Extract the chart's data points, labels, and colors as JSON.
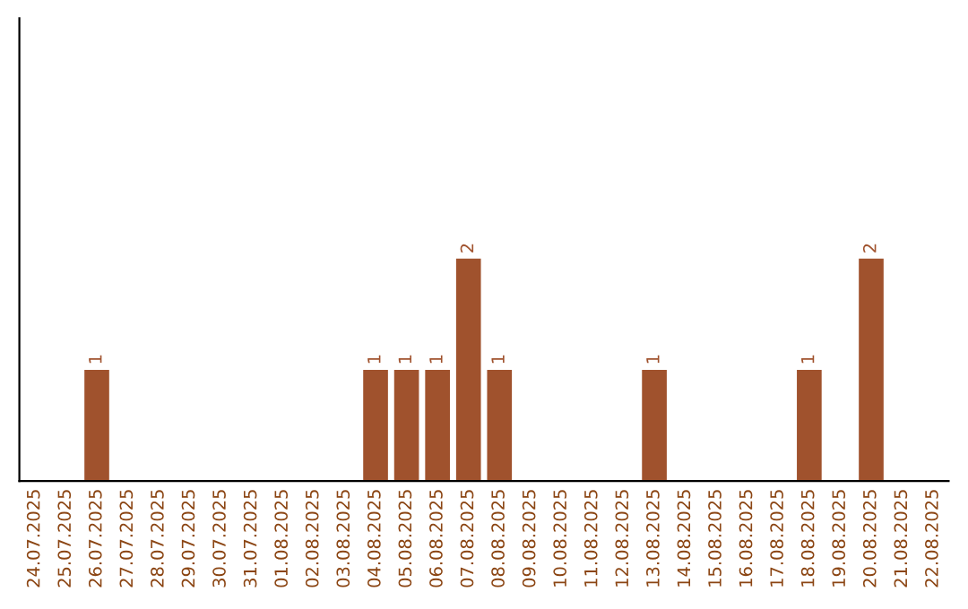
{
  "chart_data": {
    "type": "bar",
    "categories": [
      "24.07.2025",
      "25.07.2025",
      "26.07.2025",
      "27.07.2025",
      "28.07.2025",
      "29.07.2025",
      "30.07.2025",
      "31.07.2025",
      "01.08.2025",
      "02.08.2025",
      "03.08.2025",
      "04.08.2025",
      "05.08.2025",
      "06.08.2025",
      "07.08.2025",
      "08.08.2025",
      "09.08.2025",
      "10.08.2025",
      "11.08.2025",
      "12.08.2025",
      "13.08.2025",
      "14.08.2025",
      "15.08.2025",
      "16.08.2025",
      "17.08.2025",
      "18.08.2025",
      "19.08.2025",
      "20.08.2025",
      "21.08.2025",
      "22.08.2025"
    ],
    "values": [
      0,
      0,
      1,
      0,
      0,
      0,
      0,
      0,
      0,
      0,
      0,
      1,
      1,
      1,
      2,
      1,
      0,
      0,
      0,
      0,
      1,
      0,
      0,
      0,
      0,
      1,
      0,
      2,
      0,
      0
    ],
    "value_labels": [
      null,
      null,
      "1",
      null,
      null,
      null,
      null,
      null,
      null,
      null,
      null,
      "1",
      "1",
      "1",
      "2",
      "1",
      null,
      null,
      null,
      null,
      "1",
      null,
      null,
      null,
      null,
      "1",
      null,
      "2",
      null,
      null
    ],
    "color": "#a0522d",
    "tick_labels": "x",
    "grid": false,
    "legend": false
  }
}
